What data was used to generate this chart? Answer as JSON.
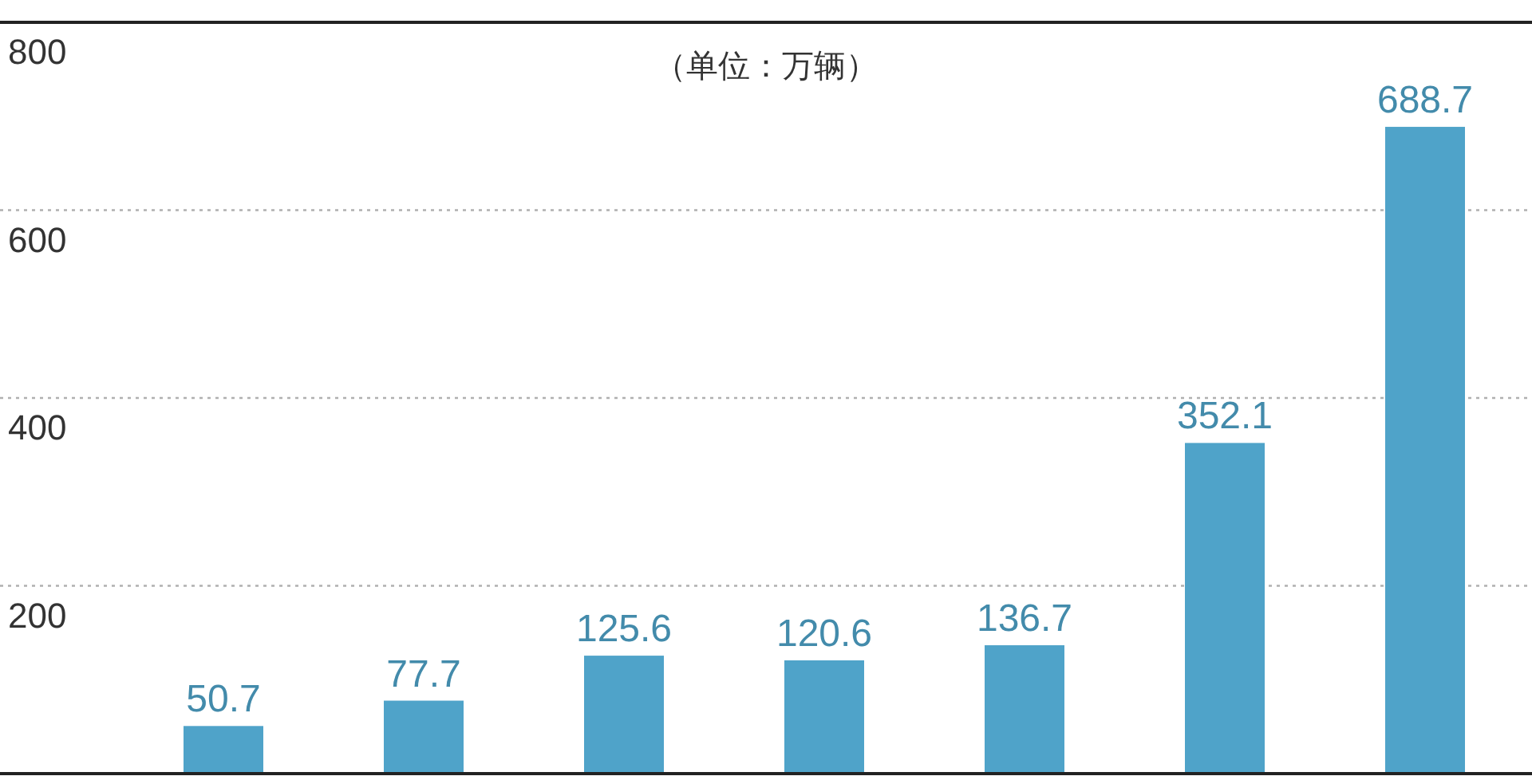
{
  "chart_data": {
    "type": "bar",
    "subtitle": "（单位：万辆）",
    "categories": [
      null,
      null,
      null,
      null,
      null,
      null,
      null
    ],
    "series": [
      {
        "color": "#4fa3c9",
        "values": [
          50.7,
          77.7,
          125.6,
          120.6,
          136.7,
          352.1,
          688.7
        ]
      }
    ],
    "data_labels": true,
    "ylim": [
      0,
      800
    ],
    "yticks": [
      200,
      400,
      600,
      800
    ],
    "grid": "y",
    "tick_labels": "y"
  }
}
